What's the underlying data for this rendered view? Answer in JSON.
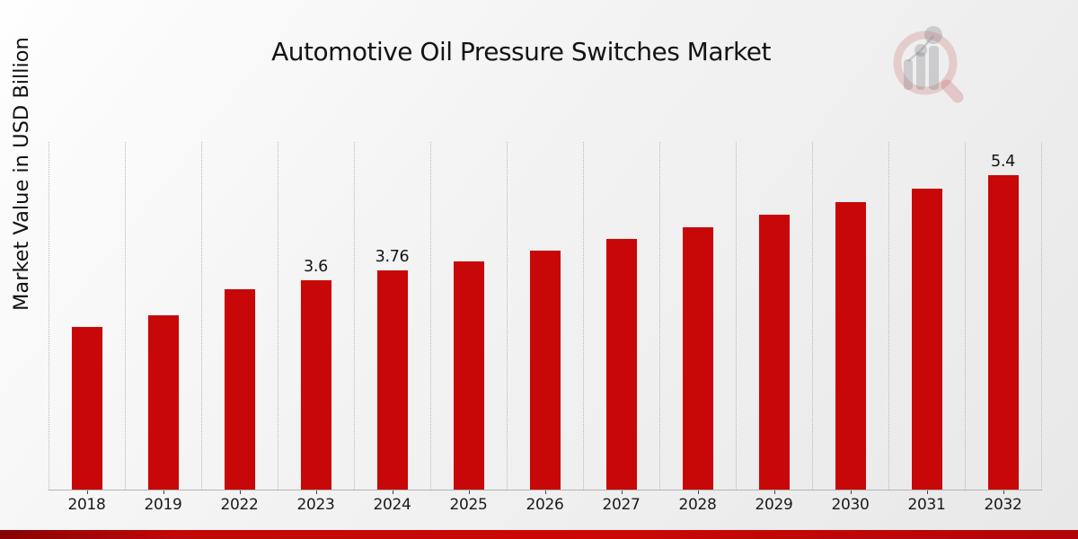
{
  "header": {
    "title": "Automotive Oil Pressure Switches Market"
  },
  "watermark": {
    "icon": "market-research-magnifier-logo"
  },
  "footer": {
    "accent_strip_color": "#c10707"
  },
  "chart_data": {
    "type": "bar",
    "title": "Automotive Oil Pressure Switches Market",
    "xlabel": "",
    "ylabel": "Market Value in USD Billion",
    "categories": [
      "2018",
      "2019",
      "2022",
      "2023",
      "2024",
      "2025",
      "2026",
      "2027",
      "2028",
      "2029",
      "2030",
      "2031",
      "2032"
    ],
    "values": [
      2.8,
      3.0,
      3.44,
      3.6,
      3.76,
      3.92,
      4.1,
      4.3,
      4.5,
      4.72,
      4.93,
      5.16,
      5.4
    ],
    "bar_labels": {
      "2023": "3.6",
      "2024": "3.76",
      "2032": "5.4"
    },
    "ylim": [
      0,
      5.95
    ],
    "grid": "vertical-dotted",
    "legend": "none",
    "bar_color": "#c80808",
    "gridline_color": "#b9b9b9",
    "axis_line_color": "#b3b3b3",
    "text_color": "#141414"
  }
}
